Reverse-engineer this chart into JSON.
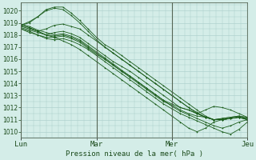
{
  "background_color": "#d4ede8",
  "plot_bg_color": "#d4ede8",
  "grid_color": "#a8ccc8",
  "line_color": "#1a5c1a",
  "ylabel_values": [
    1010,
    1011,
    1012,
    1013,
    1014,
    1015,
    1016,
    1017,
    1018,
    1019,
    1020
  ],
  "xlabels": [
    "Lun",
    "Mar",
    "Mer",
    "Jeu"
  ],
  "xlabel": "Pression niveau de la mer( hPa )",
  "ylim": [
    1009.5,
    1020.7
  ],
  "xlim": [
    0,
    72
  ],
  "day_ticks": [
    0,
    24,
    48,
    72
  ],
  "figsize": [
    3.2,
    2.0
  ],
  "dpi": 100,
  "series": [
    [
      1018.8,
      1019.0,
      1019.5,
      1020.1,
      1020.3,
      1020.3,
      1019.8,
      1019.2,
      1018.5,
      1017.8,
      1017.2,
      1016.8,
      1016.3,
      1015.8,
      1015.3,
      1014.8,
      1014.3,
      1013.8,
      1013.3,
      1012.8,
      1012.3,
      1011.8,
      1011.3,
      1011.0,
      1011.0,
      1011.1,
      1011.2,
      1011.0
    ],
    [
      1018.8,
      1019.1,
      1019.5,
      1020.0,
      1020.2,
      1020.1,
      1019.6,
      1019.0,
      1018.3,
      1017.6,
      1017.0,
      1016.5,
      1016.0,
      1015.5,
      1015.0,
      1014.5,
      1014.0,
      1013.5,
      1013.0,
      1012.5,
      1012.0,
      1011.6,
      1011.2,
      1011.0,
      1011.1,
      1011.2,
      1011.3,
      1011.1
    ],
    [
      1018.7,
      1018.5,
      1018.3,
      1018.5,
      1018.8,
      1018.9,
      1018.7,
      1018.5,
      1018.0,
      1017.5,
      1017.0,
      1016.5,
      1016.0,
      1015.5,
      1015.0,
      1014.5,
      1014.0,
      1013.5,
      1013.0,
      1012.5,
      1012.0,
      1011.5,
      1011.2,
      1011.0,
      1011.1,
      1011.2,
      1011.3,
      1011.2
    ],
    [
      1018.6,
      1018.4,
      1018.2,
      1018.0,
      1018.2,
      1018.3,
      1018.1,
      1017.8,
      1017.3,
      1016.8,
      1016.3,
      1015.8,
      1015.4,
      1015.0,
      1014.5,
      1014.0,
      1013.5,
      1013.0,
      1012.5,
      1012.0,
      1011.8,
      1011.5,
      1011.2,
      1011.0,
      1011.0,
      1011.1,
      1011.2,
      1011.0
    ],
    [
      1018.5,
      1018.3,
      1018.0,
      1017.8,
      1017.8,
      1017.9,
      1017.7,
      1017.4,
      1016.9,
      1016.4,
      1016.0,
      1015.5,
      1015.0,
      1014.6,
      1014.1,
      1013.6,
      1013.1,
      1012.6,
      1012.1,
      1011.7,
      1011.4,
      1011.1,
      1010.8,
      1010.5,
      1010.3,
      1010.5,
      1010.8,
      1011.0
    ],
    [
      1018.5,
      1018.2,
      1018.0,
      1017.7,
      1017.6,
      1017.7,
      1017.5,
      1017.2,
      1016.8,
      1016.3,
      1015.8,
      1015.3,
      1014.8,
      1014.3,
      1013.8,
      1013.3,
      1012.8,
      1012.3,
      1011.9,
      1011.5,
      1011.2,
      1010.9,
      1010.6,
      1010.3,
      1010.0,
      1009.8,
      1010.2,
      1010.8
    ],
    [
      1018.8,
      1018.6,
      1018.3,
      1018.0,
      1017.9,
      1018.0,
      1017.8,
      1017.5,
      1017.0,
      1016.5,
      1016.0,
      1015.5,
      1015.0,
      1014.5,
      1014.0,
      1013.5,
      1013.0,
      1012.5,
      1012.2,
      1011.8,
      1011.5,
      1011.3,
      1011.2,
      1011.0,
      1011.0,
      1011.1,
      1011.2,
      1011.1
    ],
    [
      1018.9,
      1018.7,
      1018.4,
      1018.2,
      1018.0,
      1018.1,
      1017.9,
      1017.6,
      1017.1,
      1016.6,
      1016.1,
      1015.6,
      1015.1,
      1014.6,
      1014.1,
      1013.6,
      1013.1,
      1012.6,
      1012.3,
      1012.0,
      1011.8,
      1011.5,
      1011.8,
      1012.1,
      1012.0,
      1011.8,
      1011.5,
      1011.2
    ],
    [
      1018.8,
      1018.6,
      1018.3,
      1018.0,
      1017.8,
      1017.5,
      1017.2,
      1016.8,
      1016.3,
      1015.8,
      1015.3,
      1014.8,
      1014.3,
      1013.8,
      1013.3,
      1012.8,
      1012.3,
      1011.8,
      1011.3,
      1010.8,
      1010.3,
      1010.0,
      1010.3,
      1010.8,
      1011.0,
      1011.1,
      1011.2,
      1011.0
    ]
  ]
}
